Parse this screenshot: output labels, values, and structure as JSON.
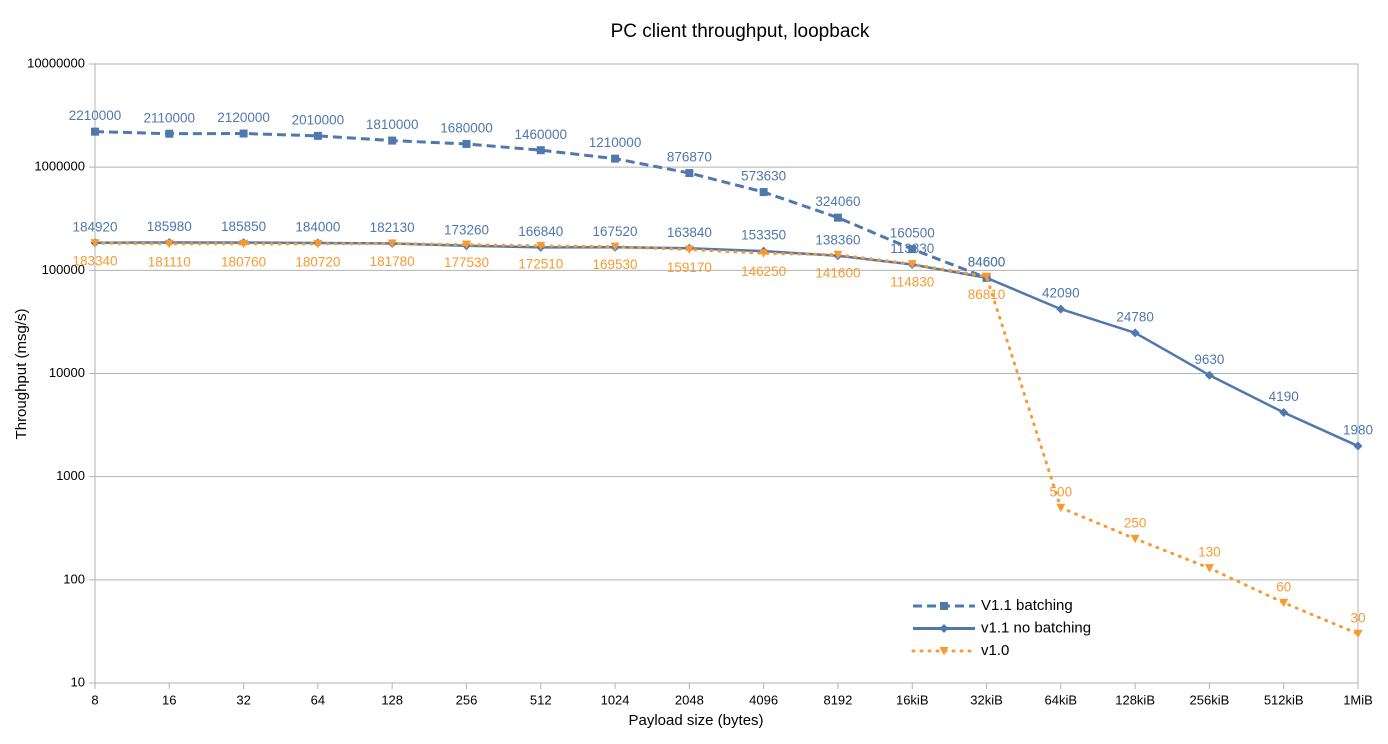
{
  "chart_data": {
    "type": "line",
    "title": "PC client throughput, loopback",
    "x_label": "Payload size (bytes)",
    "y_label": "Throughput (msg/s)",
    "categories": [
      "8",
      "16",
      "32",
      "64",
      "128",
      "256",
      "512",
      "1024",
      "2048",
      "4096",
      "8192",
      "16kiB",
      "32kiB",
      "64kiB",
      "128kiB",
      "256kiB",
      "512kiB",
      "1MiB"
    ],
    "y_log": true,
    "ylim": [
      10,
      10000000
    ],
    "yticks": [
      10,
      100,
      1000,
      10000,
      100000,
      1000000,
      10000000
    ],
    "grid": true,
    "legend": "lower right",
    "series": [
      {
        "name": "V1.1 batching",
        "color": "#4f78ad",
        "style": "dashed",
        "marker": "square",
        "values": [
          2210000,
          2110000,
          2120000,
          2010000,
          1810000,
          1680000,
          1460000,
          1210000,
          876870,
          573630,
          324060,
          160500,
          84600,
          null,
          null,
          null,
          null,
          null
        ]
      },
      {
        "name": "v1.1 no batching",
        "color": "#4f78ad",
        "style": "solid",
        "marker": "diamond",
        "values": [
          184920,
          185980,
          185850,
          184000,
          182130,
          173260,
          166840,
          167520,
          163840,
          153350,
          138360,
          113830,
          84600,
          42090,
          24780,
          9630,
          4190,
          1980
        ]
      },
      {
        "name": "v1.0",
        "color": "#f79a32",
        "style": "dotted",
        "marker": "triangle-down",
        "values": [
          183340,
          181110,
          180760,
          180720,
          181780,
          177530,
          172510,
          169530,
          159170,
          146250,
          141600,
          114830,
          86810,
          500,
          250,
          130,
          60,
          30
        ]
      }
    ]
  }
}
